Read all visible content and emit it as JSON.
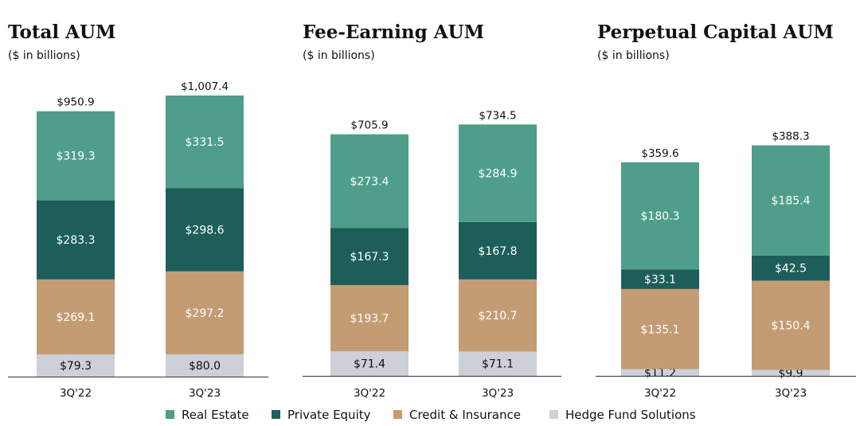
{
  "legend": [
    {
      "name": "Real Estate",
      "color": "#4E9E8B"
    },
    {
      "name": "Private Equity",
      "color": "#1D5E5A"
    },
    {
      "name": "Credit & Insurance",
      "color": "#C49C74"
    },
    {
      "name": "Hedge Fund Solutions",
      "color": "#CDD0D8"
    }
  ],
  "chart_data": [
    {
      "type": "bar",
      "stacked": true,
      "title": "Total AUM",
      "subtitle": "($ in billions)",
      "categories": [
        "3Q'22",
        "3Q'23"
      ],
      "totals": [
        "$950.9",
        "$1,007.4"
      ],
      "total_values": [
        950.9,
        1007.4
      ],
      "series": [
        {
          "name": "Hedge Fund Solutions",
          "values": [
            79.3,
            80.0
          ],
          "labels": [
            "$79.3",
            "$80.0"
          ]
        },
        {
          "name": "Credit & Insurance",
          "values": [
            269.1,
            297.2
          ],
          "labels": [
            "$269.1",
            "$297.2"
          ]
        },
        {
          "name": "Private Equity",
          "values": [
            283.3,
            298.6
          ],
          "labels": [
            "$283.3",
            "$298.6"
          ]
        },
        {
          "name": "Real Estate",
          "values": [
            319.3,
            331.5
          ],
          "labels": [
            "$319.3",
            "$331.5"
          ]
        }
      ]
    },
    {
      "type": "bar",
      "stacked": true,
      "title": "Fee-Earning AUM",
      "subtitle": "($ in billions)",
      "categories": [
        "3Q'22",
        "3Q'23"
      ],
      "totals": [
        "$705.9",
        "$734.5"
      ],
      "total_values": [
        705.9,
        734.5
      ],
      "series": [
        {
          "name": "Hedge Fund Solutions",
          "values": [
            71.4,
            71.1
          ],
          "labels": [
            "$71.4",
            "$71.1"
          ]
        },
        {
          "name": "Credit & Insurance",
          "values": [
            193.7,
            210.7
          ],
          "labels": [
            "$193.7",
            "$210.7"
          ]
        },
        {
          "name": "Private Equity",
          "values": [
            167.3,
            167.8
          ],
          "labels": [
            "$167.3",
            "$167.8"
          ]
        },
        {
          "name": "Real Estate",
          "values": [
            273.4,
            284.9
          ],
          "labels": [
            "$273.4",
            "$284.9"
          ]
        }
      ]
    },
    {
      "type": "bar",
      "stacked": true,
      "title": "Perpetual Capital AUM",
      "subtitle": "($ in billions)",
      "categories": [
        "3Q'22",
        "3Q'23"
      ],
      "totals": [
        "$359.6",
        "$388.3"
      ],
      "total_values": [
        359.6,
        388.3
      ],
      "series": [
        {
          "name": "Hedge Fund Solutions",
          "values": [
            11.2,
            9.9
          ],
          "labels": [
            "$11.2",
            "$9.9"
          ]
        },
        {
          "name": "Credit & Insurance",
          "values": [
            135.1,
            150.4
          ],
          "labels": [
            "$135.1",
            "$150.4"
          ]
        },
        {
          "name": "Private Equity",
          "values": [
            33.1,
            42.5
          ],
          "labels": [
            "$33.1",
            "$42.5"
          ]
        },
        {
          "name": "Real Estate",
          "values": [
            180.3,
            185.4
          ],
          "labels": [
            "$180.3",
            "$185.4"
          ]
        }
      ]
    }
  ]
}
